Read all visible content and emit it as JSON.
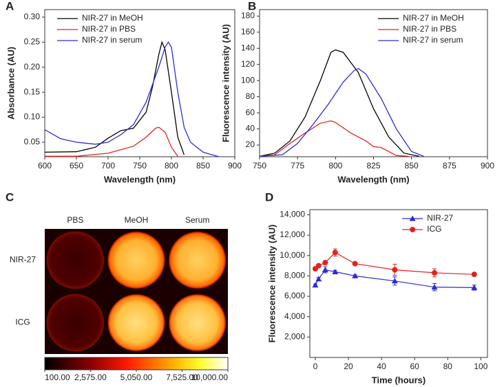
{
  "chart_data": [
    {
      "panel_label": "A",
      "type": "line",
      "xlabel": "Wavelength (nm)",
      "ylabel": "Absorbance (AU)",
      "xlim": [
        600,
        900
      ],
      "ylim": [
        0.021,
        0.315
      ],
      "xticks": [
        600,
        650,
        700,
        750,
        800,
        850,
        900
      ],
      "yticks": [
        0.05,
        {
          "value": 0.1,
          "label": "0.10"
        },
        0.15,
        {
          "value": 0.2,
          "label": "0.20"
        },
        0.25,
        {
          "value": 0.3,
          "label": "0.30"
        }
      ],
      "legend": "upper left",
      "series": [
        {
          "name": "NIR-27 in MeOH",
          "color": "#000000",
          "x": [
            600,
            650,
            680,
            700,
            720,
            740,
            760,
            770,
            780,
            785,
            790,
            800,
            810,
            820
          ],
          "values": [
            0.03,
            0.031,
            0.04,
            0.058,
            0.073,
            0.078,
            0.11,
            0.16,
            0.225,
            0.25,
            0.235,
            0.15,
            0.06,
            0.025
          ]
        },
        {
          "name": "NIR-27 in PBS",
          "color": "#e0231c",
          "x": [
            600,
            650,
            700,
            740,
            760,
            775,
            780,
            790,
            800,
            810
          ],
          "values": [
            0.022,
            0.022,
            0.028,
            0.042,
            0.06,
            0.078,
            0.08,
            0.07,
            0.04,
            0.022
          ]
        },
        {
          "name": "NIR-27 in serum",
          "color": "#2b2bd6",
          "x": [
            600,
            625,
            650,
            680,
            700,
            720,
            740,
            760,
            780,
            790,
            795,
            800,
            810,
            820,
            830,
            850,
            875
          ],
          "values": [
            0.075,
            0.057,
            0.05,
            0.046,
            0.05,
            0.065,
            0.085,
            0.13,
            0.2,
            0.24,
            0.25,
            0.24,
            0.15,
            0.08,
            0.05,
            0.03,
            0.021
          ]
        }
      ]
    },
    {
      "panel_label": "B",
      "type": "line",
      "xlabel": "Wavelength (nm)",
      "ylabel": "Fluorescence intensity (AU)",
      "xlim": [
        750,
        900
      ],
      "ylim": [
        5.5,
        188
      ],
      "xticks": [
        750,
        775,
        800,
        825,
        850,
        875,
        900
      ],
      "yticks": [
        20,
        40,
        60,
        80,
        100,
        120,
        140,
        160,
        180
      ],
      "legend": "upper right",
      "series": [
        {
          "name": "NIR-27 in MeOH",
          "color": "#000000",
          "x": [
            750,
            760,
            770,
            780,
            790,
            797,
            800,
            805,
            815,
            825,
            835,
            845,
            855
          ],
          "values": [
            6,
            10,
            25,
            55,
            100,
            135,
            138,
            135,
            110,
            65,
            30,
            10,
            6
          ]
        },
        {
          "name": "NIR-27 in PBS",
          "color": "#e0231c",
          "x": [
            750,
            760,
            770,
            780,
            790,
            797,
            800,
            810,
            820,
            825,
            830,
            835,
            840,
            848
          ],
          "values": [
            6,
            8,
            22,
            35,
            47,
            50,
            48,
            35,
            25,
            18,
            17,
            12,
            7,
            6
          ]
        },
        {
          "name": "NIR-27 in serum",
          "color": "#2b2bd6",
          "x": [
            750,
            765,
            775,
            785,
            795,
            805,
            812,
            815,
            820,
            830,
            840,
            850,
            858
          ],
          "values": [
            6,
            8,
            22,
            45,
            70,
            98,
            112,
            115,
            108,
            78,
            40,
            12,
            6
          ]
        }
      ]
    },
    {
      "panel_label": "C",
      "type": "image",
      "columns": [
        "PBS",
        "MeOH",
        "Serum"
      ],
      "rows": [
        "NIR-27",
        "ICG"
      ],
      "clim": [
        100,
        10000
      ],
      "cticks": [
        {
          "value": 100,
          "label": "100.00"
        },
        {
          "value": 2575,
          "label": "2,575.00"
        },
        {
          "value": 5050,
          "label": "5,050.00"
        },
        {
          "value": 7525,
          "label": "7,525.00"
        },
        {
          "value": 10000,
          "label": "10,000.00"
        }
      ]
    },
    {
      "panel_label": "D",
      "type": "errorline",
      "xlabel": "Time (hours)",
      "ylabel": "Fluorescence intensity (AU)",
      "xlim": [
        -3.3,
        104
      ],
      "ylim": [
        0,
        14500
      ],
      "xticks": [
        0,
        20,
        40,
        60,
        80,
        100
      ],
      "yticks": [
        {
          "value": 2000,
          "label": "2,000"
        },
        {
          "value": 4000,
          "label": "4,000"
        },
        {
          "value": 6000,
          "label": "6,000"
        },
        {
          "value": 8000,
          "label": "8,000"
        },
        {
          "value": 10000,
          "label": "10,000"
        },
        {
          "value": 12000,
          "label": "12,000"
        },
        {
          "value": 14000,
          "label": "14,000"
        }
      ],
      "legend": "upper right",
      "x": [
        0,
        2,
        6,
        12,
        24,
        48,
        72,
        96
      ],
      "series": [
        {
          "name": "NIR-27",
          "color": "#2b2bd6",
          "marker": "triangle",
          "values": [
            7100,
            7700,
            8600,
            8400,
            8000,
            7500,
            6900,
            6850
          ],
          "errors": [
            100,
            150,
            300,
            150,
            100,
            400,
            350,
            250
          ]
        },
        {
          "name": "ICG",
          "color": "#e0231c",
          "marker": "circle",
          "values": [
            8700,
            9000,
            9300,
            10300,
            9200,
            8600,
            8300,
            8150
          ],
          "errors": [
            150,
            150,
            200,
            350,
            100,
            550,
            400,
            150
          ]
        }
      ]
    }
  ]
}
